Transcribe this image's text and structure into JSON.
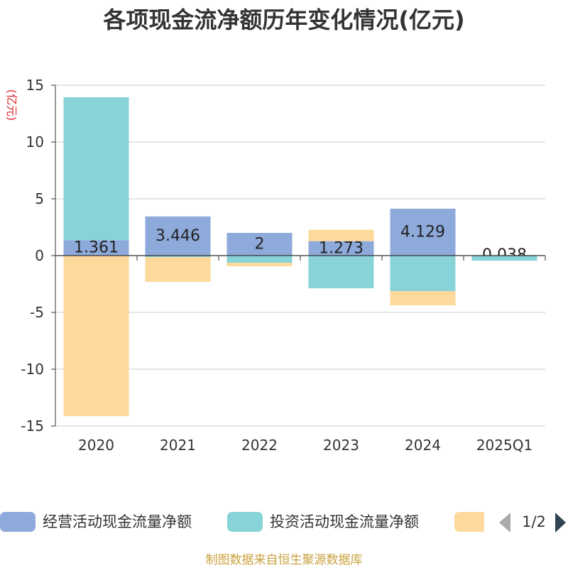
{
  "chart_data": {
    "type": "bar",
    "stacked": true,
    "title": "各项现金流净额历年变化情况(亿元)",
    "xlabel": "",
    "ylabel": "(亿元)",
    "ylabel_color": "#e0282e",
    "ylim": [
      -15,
      15
    ],
    "yticks": [
      15,
      10,
      5,
      0,
      -5,
      -10,
      -15
    ],
    "grid": true,
    "legend": "bottom",
    "categories": [
      "2020",
      "2021",
      "2022",
      "2023",
      "2024",
      "2025Q1"
    ],
    "series": [
      {
        "name": "经营活动现金流量净额",
        "color": "#8eaadb",
        "values": [
          1.361,
          3.446,
          2,
          1.273,
          4.129,
          0.038
        ],
        "labels": true
      },
      {
        "name": "投资活动现金流量净额",
        "color": "#88d3d7",
        "values": [
          12.58,
          -0.13,
          -0.63,
          -2.88,
          -3.13,
          -0.45
        ],
        "labels": false
      },
      {
        "name": "",
        "color": "#fdd99b",
        "values": [
          -14.13,
          -2.18,
          -0.31,
          1.0,
          -1.25,
          0
        ],
        "labels": false
      }
    ]
  },
  "legend_pager": {
    "text": "1/2",
    "prev_color": "#aaaaaa",
    "next_color": "#2f4554"
  },
  "footer": {
    "text": "制图数据来自恒生聚源数据库",
    "color": "#c9a23f"
  }
}
